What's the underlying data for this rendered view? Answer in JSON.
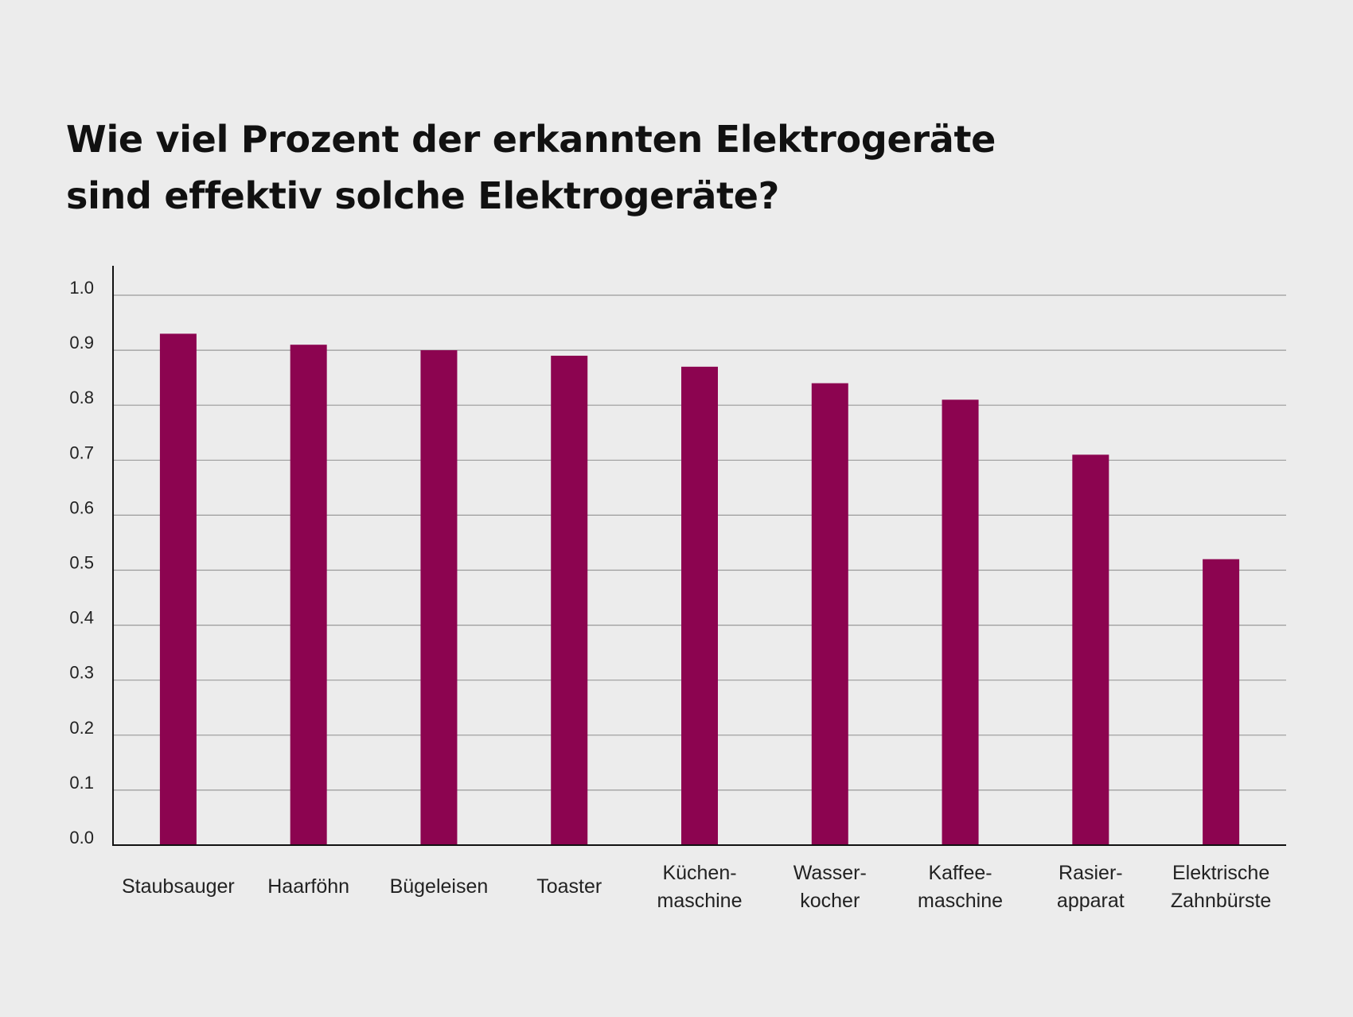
{
  "title": {
    "line1": "Wie viel Prozent der erkannten Elektrogeräte",
    "line2": "sind effektiv solche Elektrogeräte?"
  },
  "colors": {
    "background": "#ececec",
    "bar": "#8c0450",
    "axis": "#111111",
    "grid": "#9a9a9a",
    "text": "#222222"
  },
  "chart_data": {
    "type": "bar",
    "title": "Wie viel Prozent der erkannten Elektrogeräte sind effektiv solche Elektrogeräte?",
    "xlabel": "",
    "ylabel": "",
    "ylim": [
      0,
      1.0
    ],
    "grid": true,
    "legend": "none",
    "yticks": [
      "0.0",
      "0.1",
      "0.2",
      "0.3",
      "0.4",
      "0.5",
      "0.6",
      "0.7",
      "0.8",
      "0.9",
      "1.0"
    ],
    "categories": [
      [
        "Staubsauger"
      ],
      [
        "Haarföhn"
      ],
      [
        "Bügeleisen"
      ],
      [
        "Toaster"
      ],
      [
        "Küchen-",
        "maschine"
      ],
      [
        "Wasser-",
        "kocher"
      ],
      [
        "Kaffee-",
        "maschine"
      ],
      [
        "Rasier-",
        "apparat"
      ],
      [
        "Elektrische",
        "Zahnbürste"
      ]
    ],
    "values": [
      0.93,
      0.91,
      0.9,
      0.89,
      0.87,
      0.84,
      0.81,
      0.71,
      0.52
    ]
  }
}
